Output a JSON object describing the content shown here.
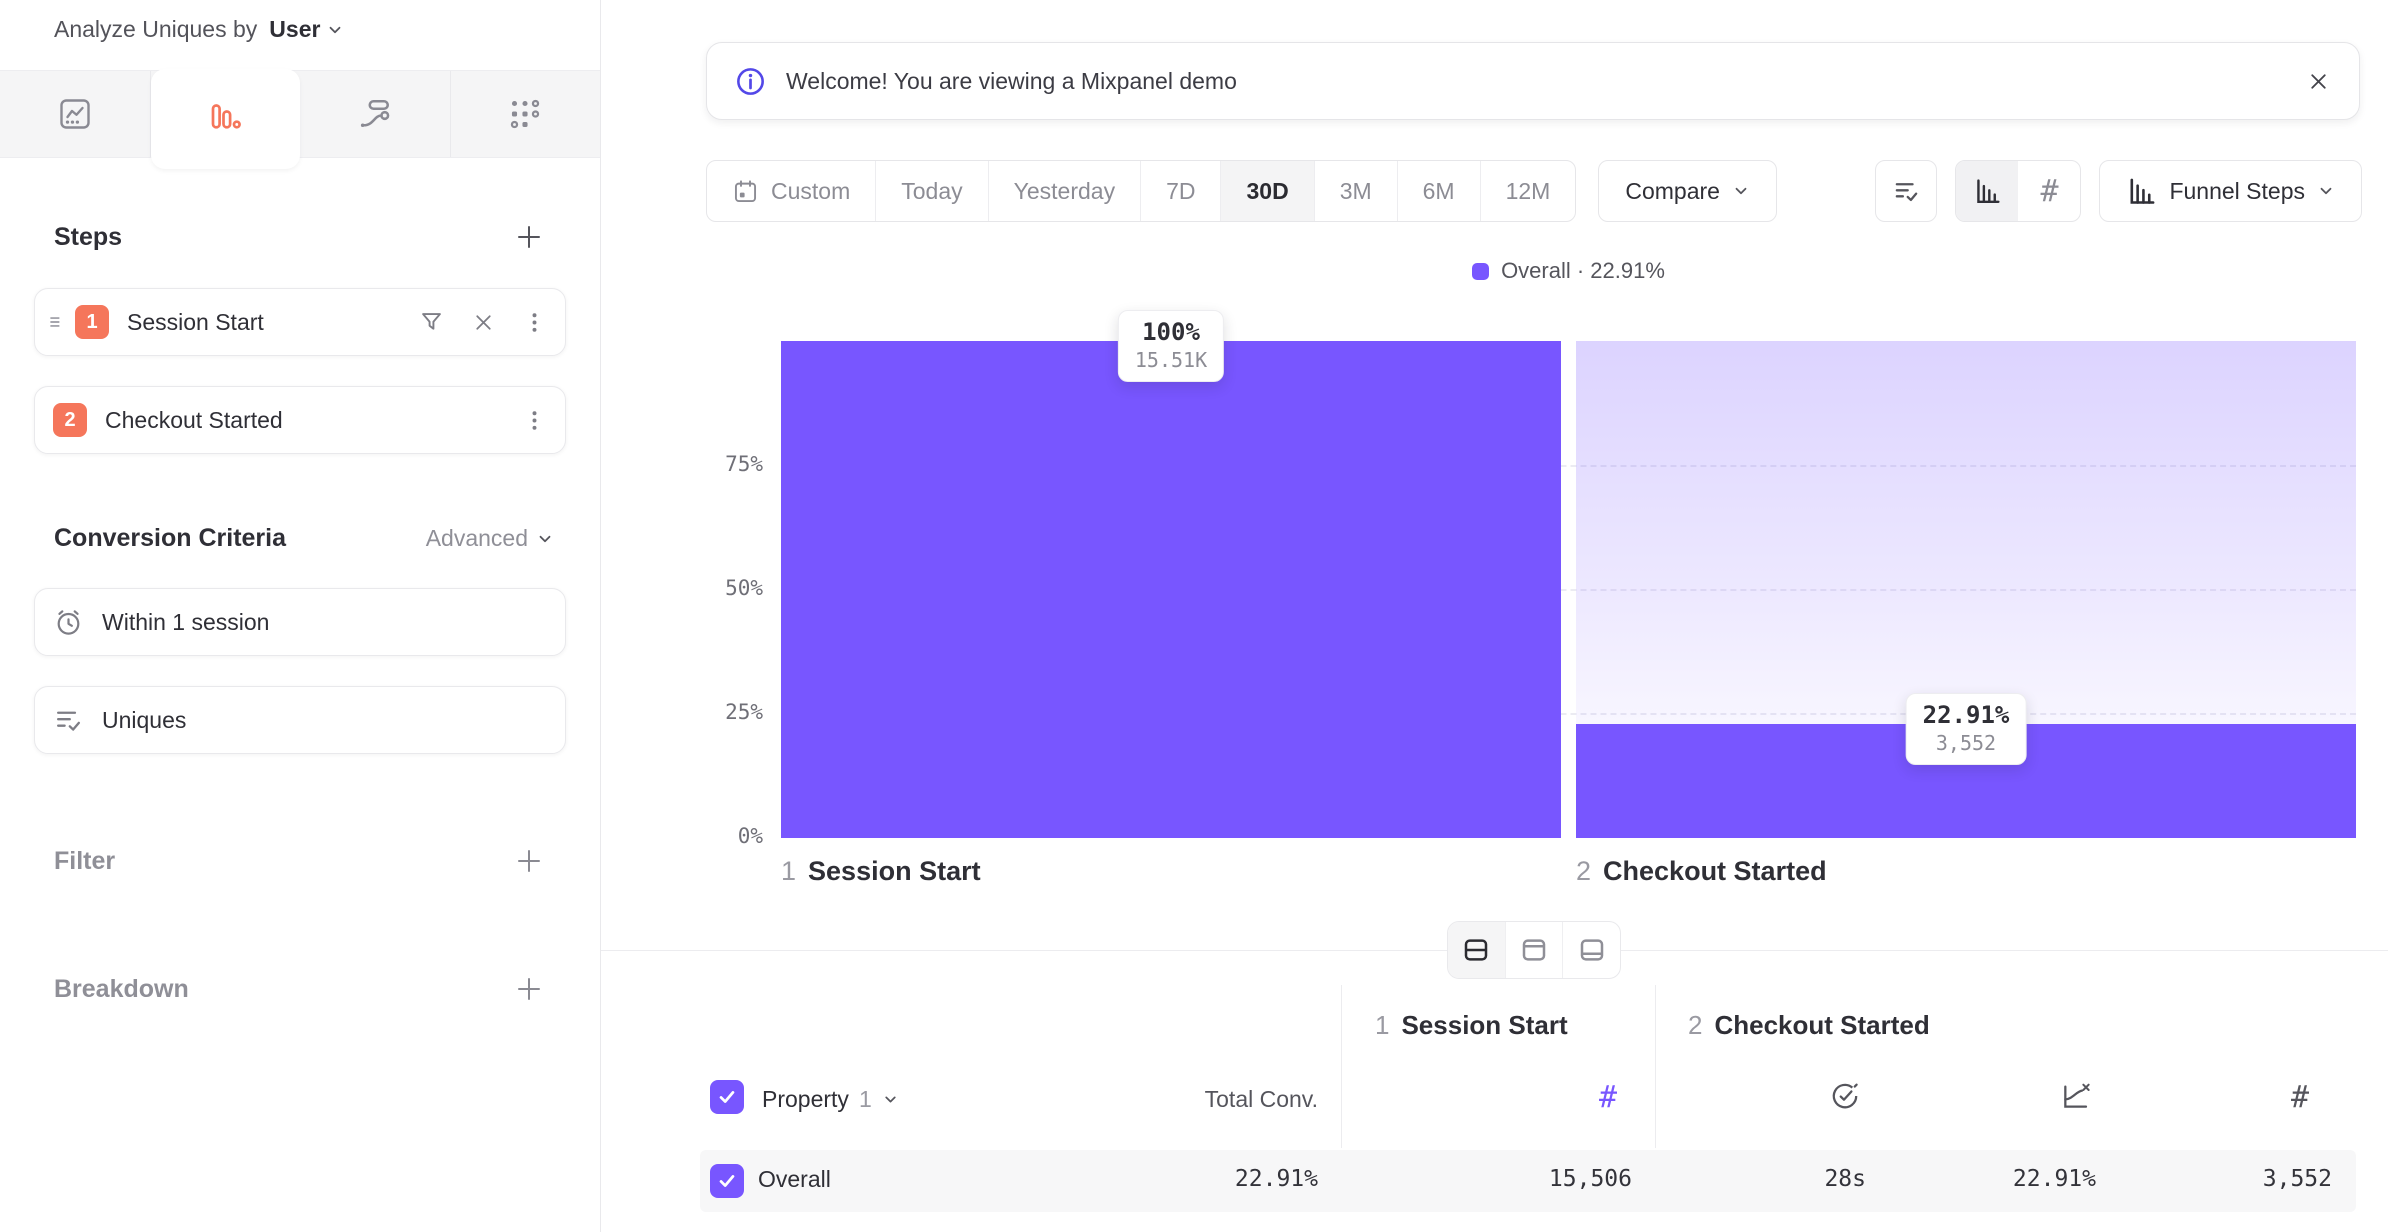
{
  "colors": {
    "accent": "#7856ff",
    "coral": "#f5765b",
    "info": "#5348e8"
  },
  "sidebar": {
    "analyze_by": {
      "label": "Analyze Uniques by",
      "value": "User"
    },
    "tabs": [
      {
        "name": "insights"
      },
      {
        "name": "funnels",
        "active": true
      },
      {
        "name": "flows"
      },
      {
        "name": "retention"
      }
    ],
    "steps": {
      "title": "Steps",
      "items": [
        {
          "index": "1",
          "label": "Session Start"
        },
        {
          "index": "2",
          "label": "Checkout Started"
        }
      ]
    },
    "conversion": {
      "title": "Conversion Criteria",
      "advanced": "Advanced",
      "window": "Within 1 session",
      "counting": "Uniques"
    },
    "filter": {
      "label": "Filter"
    },
    "breakdown": {
      "label": "Breakdown"
    }
  },
  "banner": {
    "text": "Welcome! You are viewing a Mixpanel demo",
    "close": "✕"
  },
  "toolbar": {
    "ranges": [
      "Custom",
      "Today",
      "Yesterday",
      "7D",
      "30D",
      "3M",
      "6M",
      "12M"
    ],
    "active_range": "30D",
    "compare": "Compare",
    "hash": "#",
    "funnel_steps": "Funnel Steps"
  },
  "legend": {
    "text": "Overall · 22.91%"
  },
  "chart_data": {
    "type": "bar",
    "title": "Funnel Steps",
    "categories": [
      "Session Start",
      "Checkout Started"
    ],
    "step_numbers": [
      "1",
      "2"
    ],
    "series": [
      {
        "name": "Overall",
        "values_pct": [
          100,
          22.91
        ],
        "counts": [
          15506,
          3552
        ]
      }
    ],
    "overall_conversion": "22.91%",
    "yticks_top_to_bottom": [
      "75%",
      "50%",
      "25%",
      "0%"
    ],
    "ylim": [
      0,
      100
    ],
    "grid": "dashed horizontal lines at 25/50/75%",
    "legend_position": "top-center",
    "tooltips": [
      {
        "pct": "100%",
        "count": "15.51K"
      },
      {
        "pct": "22.91%",
        "count": "3,552"
      }
    ]
  },
  "table": {
    "property": {
      "label": "Property",
      "index": "1"
    },
    "total_conv_label": "Total Conv.",
    "hash": "#",
    "groups": [
      {
        "index": "1",
        "label": "Session Start"
      },
      {
        "index": "2",
        "label": "Checkout Started"
      }
    ],
    "rows": [
      {
        "label": "Overall",
        "total_conv": "22.91%",
        "step1_count": "15,506",
        "time_to_convert": "28s",
        "conv_rate": "22.91%",
        "step2_count": "3,552"
      }
    ]
  }
}
